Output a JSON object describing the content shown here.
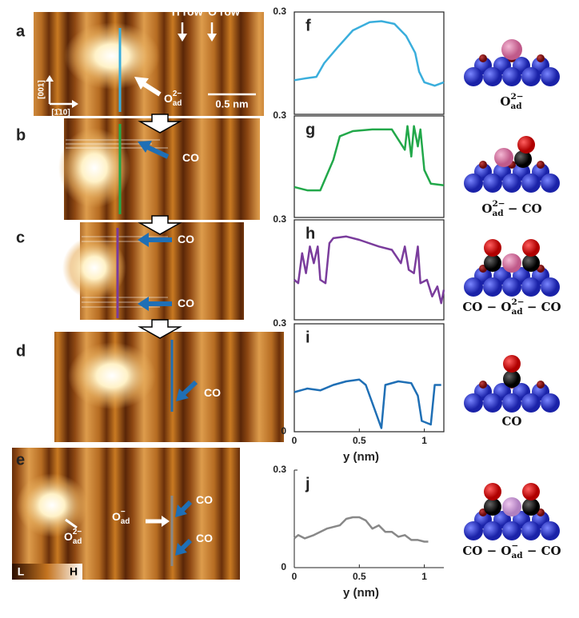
{
  "image_panels": [
    "a",
    "b",
    "c",
    "d",
    "e"
  ],
  "annotations": {
    "ti_row": "Ti row",
    "o_row": "O row",
    "dir_001": "[001]",
    "dir_110": "[1̄10]",
    "scale": "0.5 nm",
    "low": "L",
    "high": "H"
  },
  "image_labels": [
    [
      {
        "base": "O",
        "sub": "ad",
        "sup": "2−"
      }
    ],
    [
      {
        "text": "CO"
      }
    ],
    [
      {
        "text": "CO"
      }
    ],
    [
      {
        "text": "CO"
      }
    ],
    [
      {
        "text": "CO"
      }
    ],
    [
      {
        "text": "CO"
      }
    ],
    [
      {
        "base": "O",
        "sub": "ad",
        "sup": "−"
      }
    ],
    [
      {
        "text": "CO"
      }
    ],
    [
      {
        "base": "O",
        "sub": "ad",
        "sup": "2−"
      }
    ]
  ],
  "molecules": [
    [
      {
        "base": "O",
        "sub": "ad",
        "sup": "2−"
      }
    ],
    [
      {
        "base": "O",
        "sub": "ad",
        "sup": "2−"
      },
      {
        "text": " − CO"
      }
    ],
    [
      {
        "text": "CO − "
      },
      {
        "base": "O",
        "sub": "ad",
        "sup": "2−"
      },
      {
        "text": " − CO"
      }
    ],
    [
      {
        "text": "CO"
      }
    ],
    [
      {
        "text": "CO − "
      },
      {
        "base": "O",
        "sub": "ad",
        "sup": "−"
      },
      {
        "text": " − CO"
      }
    ]
  ],
  "chart_data": [
    {
      "type": "line",
      "title": "f",
      "color": "#3aaedc",
      "frame": true,
      "xlim": [
        0,
        1.15
      ],
      "ylim": [
        0,
        0.3
      ],
      "yticks": [
        0.3
      ],
      "x": [
        0,
        0.08,
        0.17,
        0.23,
        0.33,
        0.45,
        0.58,
        0.67,
        0.77,
        0.86,
        0.93,
        0.96,
        1.0,
        1.08,
        1.15
      ],
      "values": [
        0.1,
        0.105,
        0.11,
        0.15,
        0.195,
        0.246,
        0.27,
        0.273,
        0.265,
        0.23,
        0.18,
        0.125,
        0.094,
        0.084,
        0.094
      ]
    },
    {
      "type": "line",
      "title": "g",
      "color": "#22a84a",
      "frame": true,
      "xlim": [
        0,
        1.15
      ],
      "ylim": [
        0,
        0.3
      ],
      "yticks": [
        0.3
      ],
      "x": [
        0,
        0.1,
        0.2,
        0.3,
        0.35,
        0.45,
        0.6,
        0.75,
        0.85,
        0.87,
        0.9,
        0.92,
        0.95,
        0.97,
        1.0,
        1.05,
        1.15
      ],
      "values": [
        0.09,
        0.08,
        0.08,
        0.17,
        0.24,
        0.255,
        0.26,
        0.26,
        0.2,
        0.27,
        0.18,
        0.27,
        0.21,
        0.26,
        0.14,
        0.1,
        0.095
      ]
    },
    {
      "type": "line",
      "title": "h",
      "color": "#7a3c9c",
      "frame": true,
      "xlim": [
        0,
        1.15
      ],
      "ylim": [
        0,
        0.3
      ],
      "yticks": [
        0.3
      ],
      "x": [
        0,
        0.03,
        0.06,
        0.09,
        0.12,
        0.15,
        0.18,
        0.2,
        0.24,
        0.27,
        0.3,
        0.4,
        0.5,
        0.65,
        0.75,
        0.82,
        0.85,
        0.88,
        0.92,
        0.95,
        0.97,
        1.02,
        1.06,
        1.1,
        1.13,
        1.15
      ],
      "values": [
        0.12,
        0.11,
        0.2,
        0.14,
        0.22,
        0.17,
        0.22,
        0.12,
        0.11,
        0.23,
        0.245,
        0.25,
        0.24,
        0.22,
        0.21,
        0.17,
        0.22,
        0.15,
        0.14,
        0.22,
        0.11,
        0.12,
        0.07,
        0.1,
        0.05,
        0.09
      ]
    },
    {
      "type": "line",
      "title": "i",
      "color": "#1f6fb5",
      "frame": true,
      "xlim": [
        0,
        1.15
      ],
      "ylim": [
        0,
        0.3
      ],
      "yticks": [
        0,
        0.3
      ],
      "xticks": [
        0,
        0.5,
        1
      ],
      "xlabel": "y (nm)",
      "x": [
        0,
        0.1,
        0.2,
        0.3,
        0.4,
        0.5,
        0.55,
        0.62,
        0.67,
        0.7,
        0.8,
        0.9,
        0.95,
        0.98,
        1.05,
        1.08,
        1.13
      ],
      "values": [
        0.11,
        0.12,
        0.115,
        0.13,
        0.14,
        0.145,
        0.13,
        0.06,
        0.01,
        0.13,
        0.14,
        0.135,
        0.1,
        0.03,
        0.02,
        0.13,
        0.13
      ]
    },
    {
      "type": "line",
      "title": "j",
      "color": "#888888",
      "frame": false,
      "xlim": [
        0,
        1.15
      ],
      "ylim": [
        0,
        0.3
      ],
      "yticks": [
        0,
        0.3
      ],
      "xticks": [
        0,
        0.5,
        1
      ],
      "xlabel": "y (nm)",
      "x": [
        0,
        0.03,
        0.08,
        0.15,
        0.25,
        0.35,
        0.4,
        0.45,
        0.5,
        0.55,
        0.6,
        0.65,
        0.7,
        0.75,
        0.8,
        0.85,
        0.9,
        0.95,
        1.0,
        1.03
      ],
      "values": [
        0.09,
        0.1,
        0.09,
        0.1,
        0.12,
        0.13,
        0.15,
        0.155,
        0.155,
        0.145,
        0.12,
        0.13,
        0.11,
        0.11,
        0.095,
        0.1,
        0.085,
        0.085,
        0.08,
        0.08
      ]
    }
  ]
}
